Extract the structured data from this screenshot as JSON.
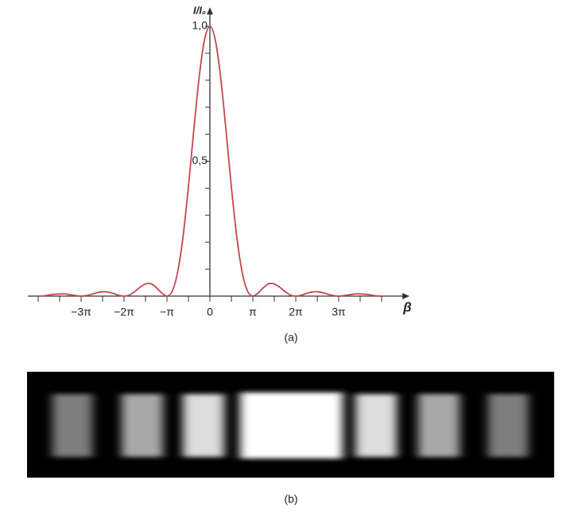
{
  "chart_data": {
    "type": "line",
    "xlabel": "β",
    "ylabel": "I/I₀",
    "caption": "(a)",
    "color": "#c4474b",
    "x": [
      -4,
      -3.875,
      -3.75,
      -3.625,
      -3.5,
      -3.375,
      -3.25,
      -3.125,
      -3,
      -2.875,
      -2.75,
      -2.625,
      -2.5,
      -2.375,
      -2.25,
      -2.125,
      -2,
      -1.875,
      -1.75,
      -1.625,
      -1.5,
      -1.375,
      -1.25,
      -1.125,
      -1,
      -0.875,
      -0.75,
      -0.625,
      -0.5,
      -0.375,
      -0.25,
      -0.125,
      0,
      0.125,
      0.25,
      0.375,
      0.5,
      0.625,
      0.75,
      0.875,
      1,
      1.125,
      1.25,
      1.375,
      1.5,
      1.625,
      1.75,
      1.875,
      2,
      2.125,
      2.25,
      2.375,
      2.5,
      2.625,
      2.75,
      2.875,
      3,
      3.125,
      3.25,
      3.375,
      3.5,
      3.625,
      3.75,
      3.875,
      4
    ],
    "values": [
      0,
      0.001,
      0.004,
      0.007,
      0.008,
      0.008,
      0.005,
      0.002,
      0,
      0.002,
      0.007,
      0.013,
      0.016,
      0.015,
      0.01,
      0.003,
      0,
      0.004,
      0.017,
      0.033,
      0.045,
      0.046,
      0.032,
      0.012,
      0,
      0.019,
      0.09,
      0.221,
      0.405,
      0.615,
      0.811,
      0.95,
      1,
      0.95,
      0.811,
      0.615,
      0.405,
      0.221,
      0.09,
      0.019,
      0,
      0.012,
      0.032,
      0.046,
      0.045,
      0.033,
      0.017,
      0.004,
      0,
      0.003,
      0.01,
      0.015,
      0.016,
      0.013,
      0.007,
      0.002,
      0,
      0.002,
      0.005,
      0.008,
      0.008,
      0.007,
      0.004,
      0.001,
      0
    ],
    "xlim": [
      -4.24,
      4.65
    ],
    "ylim": [
      0,
      1.07
    ],
    "xticks": [
      {
        "value": -3,
        "label": "−3π"
      },
      {
        "value": -2,
        "label": "−2π"
      },
      {
        "value": -1,
        "label": "−π"
      },
      0,
      {
        "value": 1,
        "label": "π"
      },
      {
        "value": 2,
        "label": "2π"
      },
      {
        "value": 3,
        "label": "3π"
      }
    ],
    "xminorticks": [
      -4,
      -3.5,
      -3,
      -2.5,
      -2,
      -1.5,
      -1,
      -0.5,
      0.5,
      1,
      1.5,
      2,
      2.5,
      3,
      3.5,
      4
    ],
    "yticks": [
      {
        "value": 0.5,
        "label": "0,5"
      },
      {
        "value": 1,
        "label": "1,0"
      }
    ],
    "yminorticks": [
      0.1,
      0.2,
      0.3,
      0.4,
      0.5,
      0.6,
      0.7,
      0.8,
      0.9,
      1
    ]
  },
  "figure_b": {
    "caption": "(b)"
  }
}
